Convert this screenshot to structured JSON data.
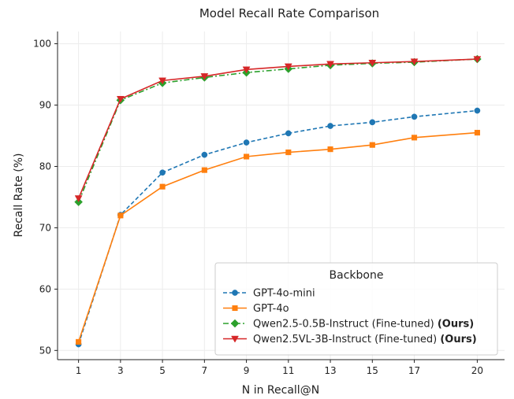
{
  "chart_data": {
    "type": "line",
    "title": "Model Recall Rate Comparison",
    "xlabel": "N in Recall@N",
    "ylabel": "Recall Rate (%)",
    "x": [
      1,
      3,
      5,
      7,
      9,
      11,
      13,
      15,
      17,
      20
    ],
    "x_ticks": [
      "1",
      "3",
      "5",
      "7",
      "9",
      "11",
      "13",
      "15",
      "17",
      "20"
    ],
    "y_ticks": [
      "50",
      "60",
      "70",
      "80",
      "90",
      "100"
    ],
    "ylim": [
      48.5,
      102
    ],
    "grid": true,
    "legend": {
      "title": "Backbone",
      "placement": "lower-right"
    },
    "series": [
      {
        "name": "GPT-4o-mini",
        "suffix": "",
        "color": "#1f77b4",
        "marker": "circle",
        "line": "dashed",
        "values": [
          51.0,
          72.1,
          79.0,
          81.9,
          83.9,
          85.4,
          86.6,
          87.2,
          88.1,
          89.1
        ]
      },
      {
        "name": "GPT-4o",
        "suffix": "",
        "color": "#ff7f0e",
        "marker": "square",
        "line": "solid",
        "values": [
          51.4,
          72.0,
          76.7,
          79.4,
          81.6,
          82.3,
          82.8,
          83.5,
          84.7,
          85.5
        ]
      },
      {
        "name": "Qwen2.5-0.5B-Instruct (Fine-tuned) ",
        "suffix": "(Ours)",
        "color": "#2ca02c",
        "marker": "diamond",
        "line": "dashdot",
        "values": [
          74.2,
          90.8,
          93.6,
          94.5,
          95.3,
          95.9,
          96.5,
          96.8,
          97.0,
          97.5
        ]
      },
      {
        "name": "Qwen2.5VL-3B-Instruct (Fine-tuned) ",
        "suffix": "(Ours)",
        "color": "#d62728",
        "marker": "triangle-down",
        "line": "solid",
        "values": [
          74.8,
          91.0,
          94.0,
          94.7,
          95.8,
          96.3,
          96.7,
          96.9,
          97.1,
          97.5
        ]
      }
    ]
  }
}
